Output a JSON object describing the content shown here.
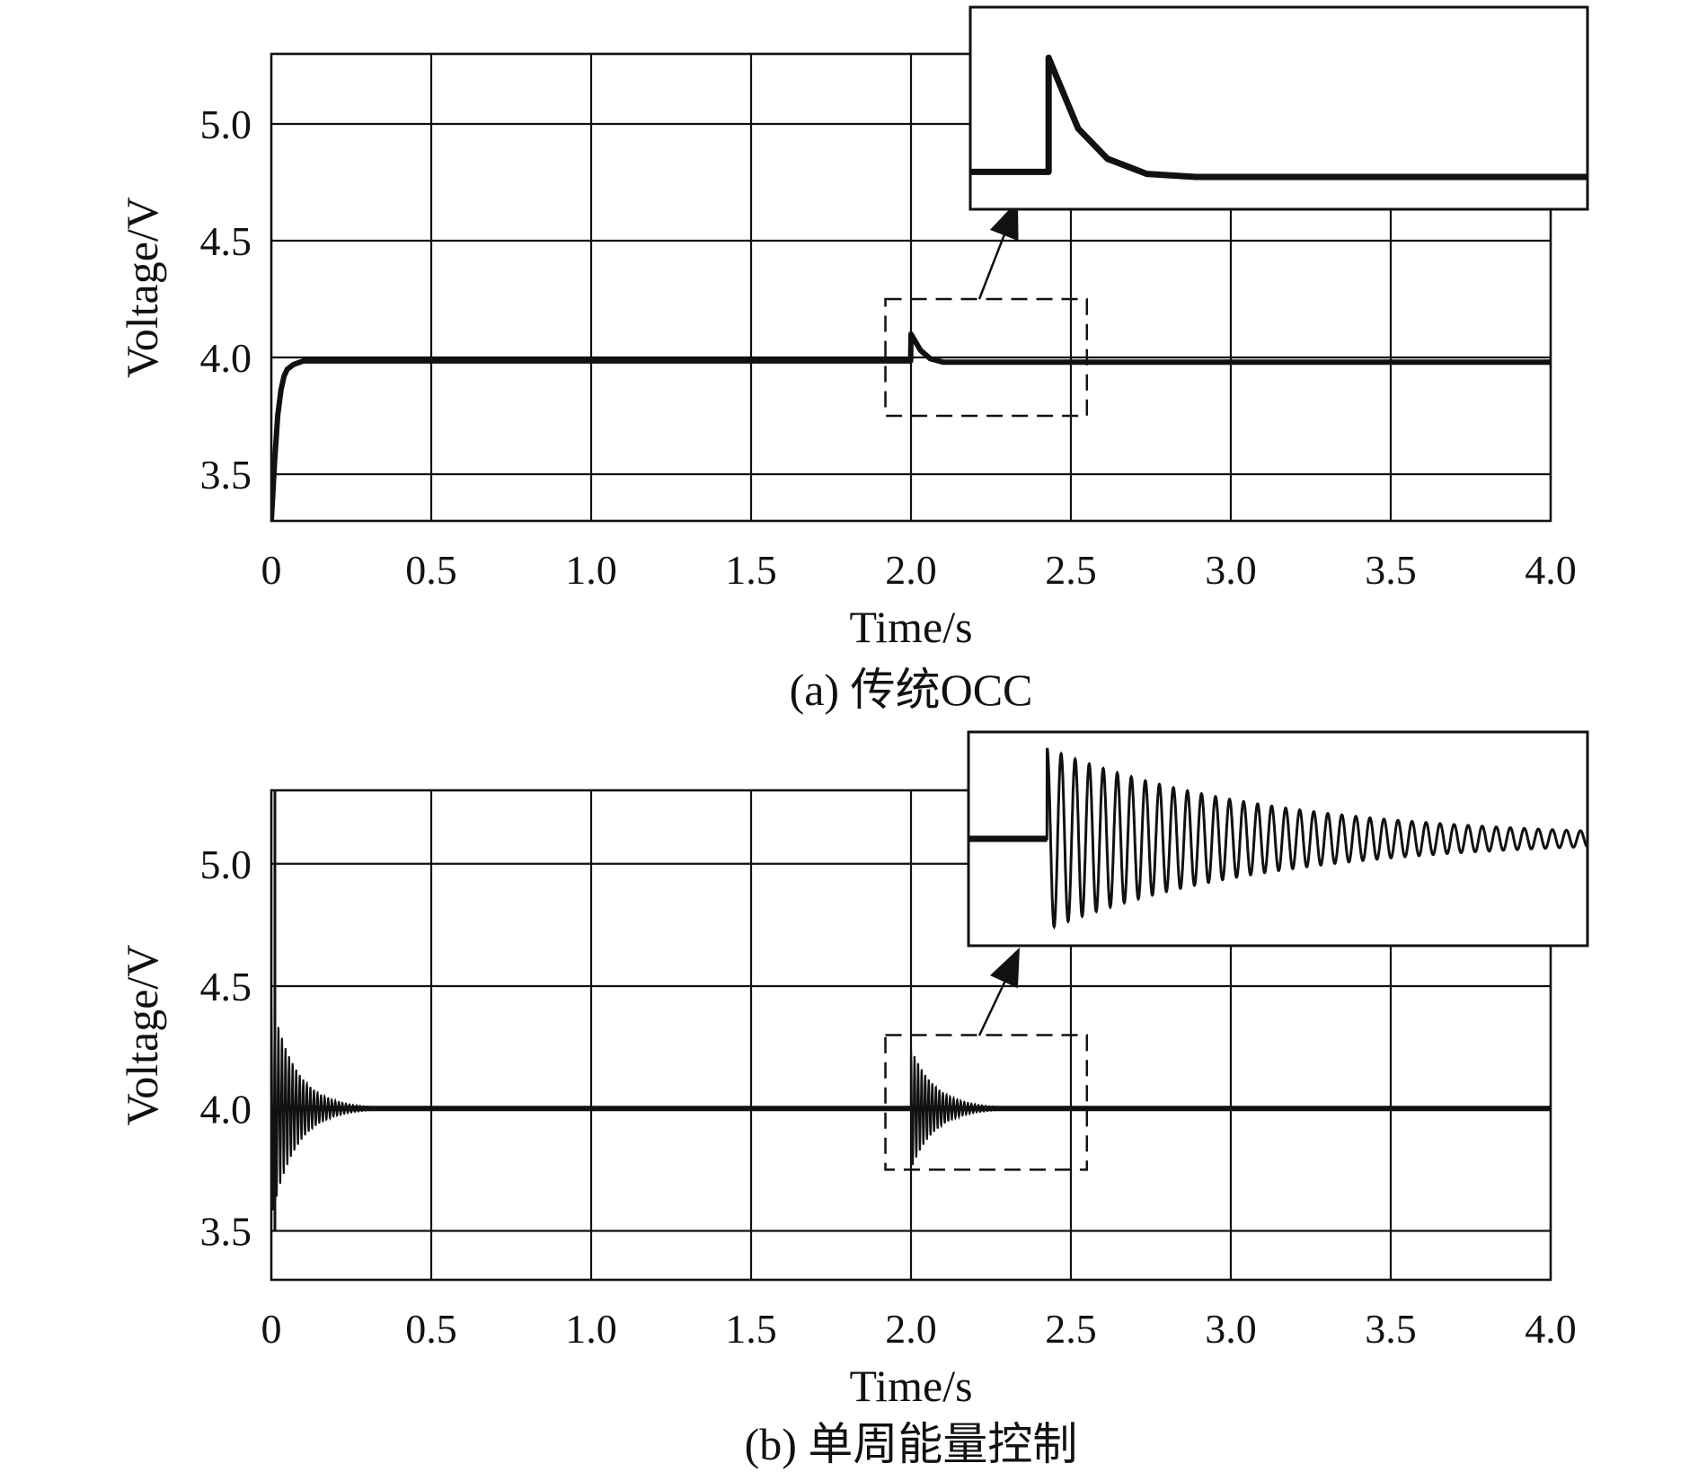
{
  "colors": {
    "line": "#111111",
    "grid": "#111111",
    "background": "#ffffff"
  },
  "chart_data": [
    {
      "id": "a",
      "type": "line",
      "caption": "(a) 传统OCC",
      "xlabel": "Time/s",
      "ylabel": "Voltage/V",
      "xlim": [
        0,
        4.0
      ],
      "ylim": [
        3.3,
        5.3
      ],
      "x_ticks": [
        "0",
        "0.5",
        "1.0",
        "1.5",
        "2.0",
        "2.5",
        "3.0",
        "3.5",
        "4.0"
      ],
      "y_ticks": [
        "3.5",
        "4.0",
        "4.5",
        "5.0"
      ],
      "grid": true,
      "series": [
        {
          "x": [
            0.0,
            0.01,
            0.02,
            0.03,
            0.04,
            0.05,
            0.07,
            0.1,
            0.2,
            1.0,
            1.999,
            2.0,
            2.03,
            2.06,
            2.1,
            2.2,
            3.0,
            4.0
          ],
          "y": [
            3.3,
            3.55,
            3.75,
            3.86,
            3.92,
            3.95,
            3.97,
            3.985,
            3.985,
            3.985,
            3.985,
            4.1,
            4.03,
            3.995,
            3.98,
            3.98,
            3.98,
            3.98
          ]
        }
      ],
      "zoom_box": {
        "x": [
          1.92,
          2.55
        ],
        "y": [
          3.75,
          4.25
        ]
      },
      "inset": {
        "series": [
          {
            "x": [
              1.92,
              2.0,
              2.0,
              2.03,
              2.06,
              2.1,
              2.15,
              2.2,
              2.55
            ],
            "y": [
              3.987,
              3.987,
              4.1,
              4.03,
              4.0,
              3.985,
              3.982,
              3.982,
              3.982
            ]
          }
        ]
      }
    },
    {
      "id": "b",
      "type": "line",
      "caption": "(b) 单周能量控制",
      "xlabel": "Time/s",
      "ylabel": "Voltage/V",
      "xlim": [
        0,
        4.0
      ],
      "ylim": [
        3.3,
        5.3
      ],
      "x_ticks": [
        "0",
        "0.5",
        "1.0",
        "1.5",
        "2.0",
        "2.5",
        "3.0",
        "3.5",
        "4.0"
      ],
      "y_ticks": [
        "3.5",
        "4.0",
        "4.5",
        "5.0"
      ],
      "grid": true,
      "series": [
        {
          "steady_value": 4.0,
          "disturbances": [
            {
              "start": 0.0,
              "peak": 5.3,
              "first_amplitude": 0.45,
              "decay_time": 0.3
            },
            {
              "start": 2.0,
              "peak": 4.25,
              "first_amplitude": 0.25,
              "decay_time": 0.3
            }
          ]
        }
      ],
      "zoom_box": {
        "x": [
          1.92,
          2.55
        ],
        "y": [
          3.75,
          4.3
        ]
      },
      "inset": {
        "series": [
          {
            "steady_value": 4.0,
            "peak": 4.25,
            "decay_time": 0.3
          }
        ]
      }
    }
  ]
}
